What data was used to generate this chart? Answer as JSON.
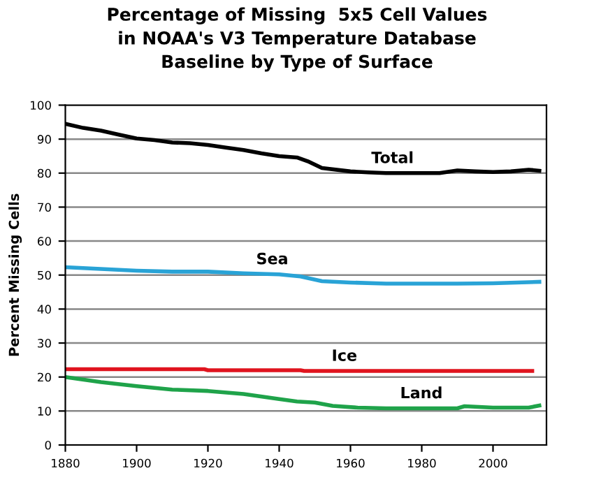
{
  "chart_data": {
    "type": "line",
    "title": "Percentage of Missing  5x5 Cell Values\nin NOAA's V3 Temperature Database\nBaseline by Type of Surface",
    "ylabel": "Percent Missing Cells",
    "xlim": [
      1880,
      2015
    ],
    "xticks": [
      1880,
      1900,
      1920,
      1940,
      1960,
      1980,
      2000
    ],
    "ylim": [
      0,
      100
    ],
    "yticks": [
      0,
      10,
      20,
      30,
      40,
      50,
      60,
      70,
      80,
      90,
      100
    ],
    "grid": "y",
    "legend": false,
    "marker": "none",
    "line_style": "solid",
    "series": [
      {
        "name": "Total",
        "color": "#000000",
        "x": [
          1880,
          1885,
          1890,
          1895,
          1900,
          1905,
          1910,
          1915,
          1920,
          1925,
          1930,
          1935,
          1940,
          1945,
          1948,
          1952,
          1960,
          1965,
          1970,
          1980,
          1985,
          1990,
          1995,
          2000,
          2005,
          2010,
          2013
        ],
        "values": [
          94.5,
          93.3,
          92.5,
          91.3,
          90.2,
          89.7,
          89,
          88.8,
          88.3,
          87.5,
          86.8,
          85.8,
          85,
          84.6,
          83.5,
          81.5,
          80.5,
          80.2,
          80,
          80,
          80,
          80.8,
          80.5,
          80.3,
          80.5,
          81,
          80.7
        ]
      },
      {
        "name": "Sea",
        "color": "#29a3d6",
        "x": [
          1880,
          1890,
          1900,
          1910,
          1920,
          1930,
          1940,
          1946,
          1952,
          1960,
          1970,
          1980,
          1990,
          2000,
          2013
        ],
        "values": [
          52.3,
          51.8,
          51.3,
          51,
          51,
          50.5,
          50.2,
          49.6,
          48.2,
          47.8,
          47.5,
          47.5,
          47.5,
          47.6,
          48
        ]
      },
      {
        "name": "Ice",
        "color": "#e0141e",
        "x": [
          1880,
          1919,
          1920,
          1946,
          1947,
          2011
        ],
        "values": [
          22.3,
          22.3,
          22,
          22,
          21.8,
          21.8
        ]
      },
      {
        "name": "Land",
        "color": "#1fa34a",
        "x": [
          1880,
          1890,
          1900,
          1910,
          1920,
          1930,
          1940,
          1945,
          1950,
          1955,
          1962,
          1970,
          1990,
          1992,
          2000,
          2010,
          2013
        ],
        "values": [
          20,
          18.5,
          17.3,
          16.3,
          15.9,
          15,
          13.5,
          12.8,
          12.5,
          11.5,
          11,
          10.8,
          10.8,
          11.4,
          11,
          11,
          11.6
        ]
      }
    ]
  }
}
